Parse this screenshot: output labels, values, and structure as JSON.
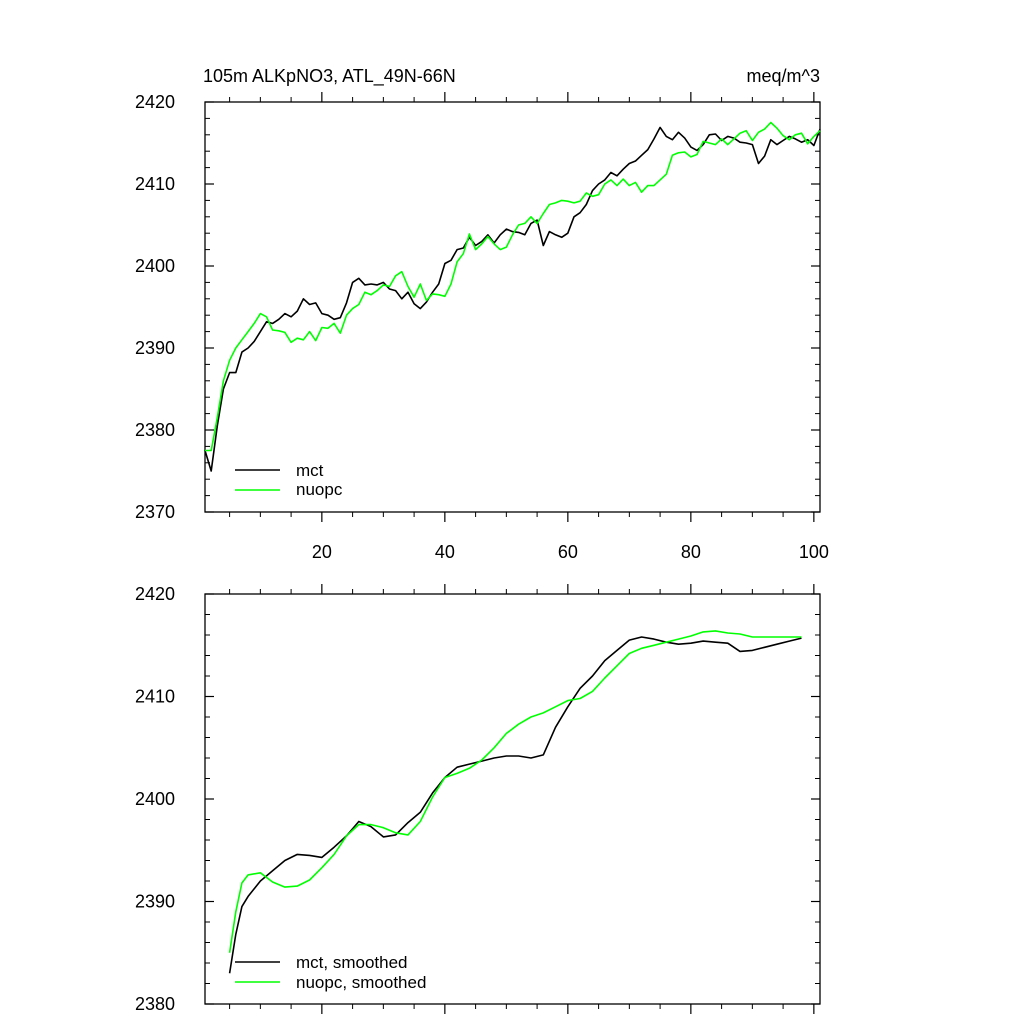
{
  "chart_data": [
    {
      "type": "line",
      "title": "105m ALKpNO3, ATL_49N-66N",
      "units": "meq/m^3",
      "xlim": [
        1,
        101
      ],
      "ylim": [
        2370,
        2420
      ],
      "xticks": [
        20,
        40,
        60,
        80,
        100
      ],
      "yticks": [
        2370,
        2380,
        2390,
        2400,
        2410,
        2420
      ],
      "xtick_labels": [
        "20",
        "40",
        "60",
        "80",
        "100"
      ],
      "ytick_labels": [
        "2370",
        "2380",
        "2390",
        "2400",
        "2410",
        "2420"
      ],
      "legend_position": "bottom-left",
      "series": [
        {
          "name": "mct",
          "color": "#000000",
          "x": [
            1,
            2,
            3,
            4,
            5,
            6,
            7,
            8,
            9,
            10,
            11,
            12,
            13,
            14,
            15,
            16,
            17,
            18,
            19,
            20,
            21,
            22,
            23,
            24,
            25,
            26,
            27,
            28,
            29,
            30,
            31,
            32,
            33,
            34,
            35,
            36,
            37,
            38,
            39,
            40,
            41,
            42,
            43,
            44,
            45,
            46,
            47,
            48,
            49,
            50,
            51,
            52,
            53,
            54,
            55,
            56,
            57,
            58,
            59,
            60,
            61,
            62,
            63,
            64,
            65,
            66,
            67,
            68,
            69,
            70,
            71,
            72,
            73,
            74,
            75,
            76,
            77,
            78,
            79,
            80,
            81,
            82,
            83,
            84,
            85,
            86,
            87,
            88,
            89,
            90,
            91,
            92,
            93,
            94,
            95,
            96,
            97,
            98,
            99,
            100,
            101
          ],
          "values": [
            2377.5,
            2375,
            2380.5,
            2385,
            2387,
            2387,
            2389.5,
            2390,
            2390.8,
            2392,
            2393.2,
            2393,
            2393.5,
            2394.2,
            2393.8,
            2394.5,
            2396,
            2395.3,
            2395.5,
            2394.2,
            2394,
            2393.5,
            2393.7,
            2395.5,
            2398,
            2398.5,
            2397.7,
            2397.8,
            2397.7,
            2398,
            2397.2,
            2397,
            2396,
            2396.8,
            2395.4,
            2394.8,
            2395.6,
            2396.8,
            2397.8,
            2400.3,
            2400.7,
            2402,
            2402.2,
            2403.5,
            2402.5,
            2403,
            2403.8,
            2402.8,
            2403.8,
            2404.5,
            2404.2,
            2404.1,
            2403.8,
            2405.2,
            2405.6,
            2402.5,
            2404.2,
            2403.8,
            2403.5,
            2404,
            2406,
            2406.5,
            2407.5,
            2409.2,
            2410,
            2410.5,
            2411.4,
            2411,
            2411.8,
            2412.5,
            2412.8,
            2413.5,
            2414.2,
            2415.5,
            2416.9,
            2415.8,
            2415.4,
            2416.3,
            2415.6,
            2414.5,
            2414.1,
            2414.8,
            2416,
            2416.1,
            2415.3,
            2415.8,
            2415.6,
            2415.1,
            2415,
            2414.8,
            2412.5,
            2413.4,
            2415.4,
            2414.8,
            2415.3,
            2415.8,
            2415.5,
            2415.1,
            2415.4,
            2414.7,
            2416.7
          ]
        },
        {
          "name": "nuopc",
          "color": "#00ff00",
          "x": [
            1,
            2,
            3,
            4,
            5,
            6,
            7,
            8,
            9,
            10,
            11,
            12,
            13,
            14,
            15,
            16,
            17,
            18,
            19,
            20,
            21,
            22,
            23,
            24,
            25,
            26,
            27,
            28,
            29,
            30,
            31,
            32,
            33,
            34,
            35,
            36,
            37,
            38,
            39,
            40,
            41,
            42,
            43,
            44,
            45,
            46,
            47,
            48,
            49,
            50,
            51,
            52,
            53,
            54,
            55,
            56,
            57,
            58,
            59,
            60,
            61,
            62,
            63,
            64,
            65,
            66,
            67,
            68,
            69,
            70,
            71,
            72,
            73,
            74,
            75,
            76,
            77,
            78,
            79,
            80,
            81,
            82,
            83,
            84,
            85,
            86,
            87,
            88,
            89,
            90,
            91,
            92,
            93,
            94,
            95,
            96,
            97,
            98,
            99,
            100,
            101
          ],
          "values": [
            2377.5,
            2377.5,
            2381.5,
            2386,
            2388.5,
            2390,
            2391,
            2392,
            2393,
            2394.2,
            2393.8,
            2392.2,
            2392.1,
            2391.9,
            2390.7,
            2391.2,
            2391,
            2392,
            2390.9,
            2392.5,
            2392.4,
            2393,
            2391.8,
            2394,
            2394.8,
            2395.3,
            2396.8,
            2396.5,
            2397,
            2397.7,
            2397.5,
            2398.8,
            2399.3,
            2397.5,
            2396.2,
            2397.8,
            2395.8,
            2396.6,
            2396.5,
            2396.3,
            2397.8,
            2400.5,
            2401.5,
            2403.9,
            2402,
            2402.7,
            2403.6,
            2402.7,
            2402,
            2402.3,
            2403.8,
            2405,
            2405.2,
            2406,
            2405.2,
            2406.4,
            2407.5,
            2407.7,
            2408,
            2407.9,
            2407.7,
            2407.9,
            2408.9,
            2408.5,
            2408.7,
            2410,
            2410.5,
            2409.8,
            2410.6,
            2409.8,
            2410.2,
            2409,
            2409.8,
            2409.8,
            2410.5,
            2411.2,
            2413.5,
            2413.8,
            2413.9,
            2413.3,
            2413.6,
            2415.2,
            2415,
            2414.8,
            2415.5,
            2414.8,
            2415.5,
            2416.2,
            2416.5,
            2415.3,
            2416.3,
            2416.7,
            2417.5,
            2416.8,
            2415.9,
            2415.4,
            2416,
            2416.2,
            2414.9,
            2415.8,
            2416.5
          ]
        }
      ]
    },
    {
      "type": "line",
      "title": "",
      "xlim": [
        1,
        101
      ],
      "ylim": [
        2380,
        2420
      ],
      "xticks": [
        20,
        40,
        60,
        80,
        100
      ],
      "yticks": [
        2380,
        2390,
        2400,
        2410,
        2420
      ],
      "ytick_labels": [
        "2380",
        "2390",
        "2400",
        "2410",
        "2420"
      ],
      "legend_position": "bottom-left",
      "series": [
        {
          "name": "mct, smoothed",
          "color": "#000000",
          "x": [
            5,
            6,
            7,
            8,
            10,
            12,
            14,
            16,
            18,
            20,
            22,
            24,
            26,
            28,
            30,
            32,
            34,
            36,
            38,
            40,
            42,
            44,
            46,
            48,
            50,
            52,
            54,
            56,
            58,
            60,
            62,
            64,
            66,
            68,
            70,
            72,
            74,
            76,
            78,
            80,
            82,
            84,
            86,
            88,
            90,
            92,
            94,
            96,
            98
          ],
          "values": [
            2383,
            2386.8,
            2389.5,
            2390.5,
            2392,
            2393,
            2394,
            2394.6,
            2394.5,
            2394.3,
            2395.3,
            2396.4,
            2397.8,
            2397.3,
            2396.3,
            2396.5,
            2397.7,
            2398.7,
            2400.6,
            2402.1,
            2403.1,
            2403.4,
            2403.7,
            2404,
            2404.2,
            2404.2,
            2404,
            2404.3,
            2407,
            2409,
            2410.8,
            2412,
            2413.5,
            2414.5,
            2415.5,
            2415.8,
            2415.6,
            2415.3,
            2415.1,
            2415.2,
            2415.4,
            2415.3,
            2415.2,
            2414.4,
            2414.5,
            2414.8,
            2415.1,
            2415.4,
            2415.7
          ]
        },
        {
          "name": "nuopc, smoothed",
          "color": "#00ff00",
          "x": [
            5,
            6,
            7,
            8,
            10,
            12,
            14,
            16,
            18,
            20,
            22,
            24,
            26,
            28,
            30,
            32,
            34,
            36,
            38,
            40,
            42,
            44,
            46,
            48,
            50,
            52,
            54,
            56,
            58,
            60,
            62,
            64,
            66,
            68,
            70,
            72,
            74,
            76,
            78,
            80,
            82,
            84,
            86,
            88,
            90,
            92,
            94,
            96,
            98
          ],
          "values": [
            2385,
            2389,
            2391.8,
            2392.6,
            2392.8,
            2391.9,
            2391.4,
            2391.5,
            2392.1,
            2393.3,
            2394.6,
            2396.4,
            2397.5,
            2397.5,
            2397.2,
            2396.7,
            2396.5,
            2397.8,
            2400.2,
            2402.1,
            2402.5,
            2403,
            2403.8,
            2405,
            2406.4,
            2407.3,
            2408,
            2408.4,
            2409,
            2409.6,
            2409.8,
            2410.5,
            2411.8,
            2413,
            2414.2,
            2414.7,
            2415,
            2415.3,
            2415.6,
            2415.9,
            2416.3,
            2416.4,
            2416.2,
            2416.1,
            2415.8,
            2415.8,
            2415.8,
            2415.8,
            2415.8
          ]
        }
      ]
    }
  ]
}
